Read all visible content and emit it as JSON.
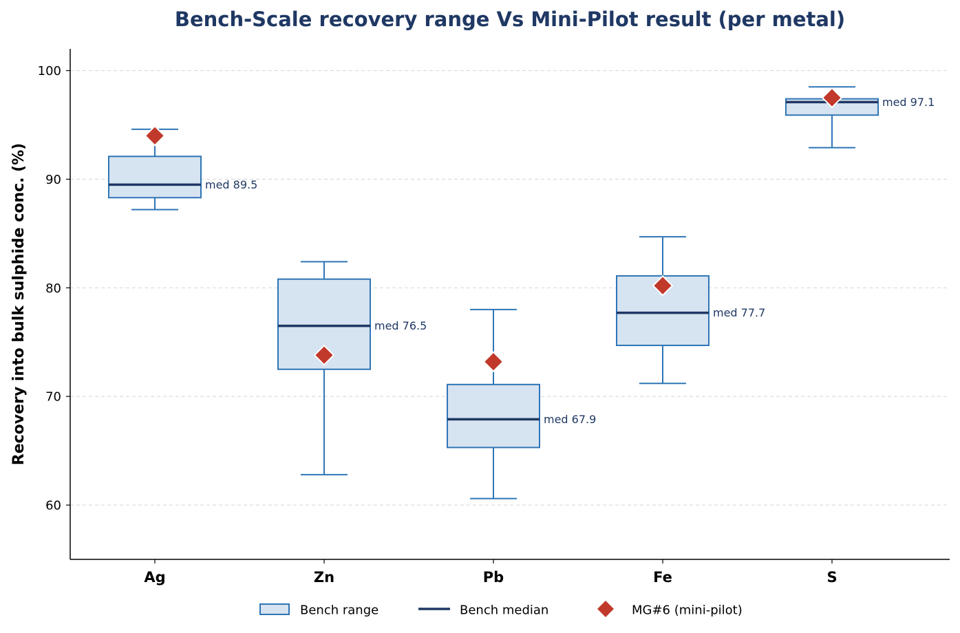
{
  "chart_data": {
    "type": "box",
    "title": "Bench-Scale recovery range Vs Mini-Pilot result (per metal)",
    "xlabel": "",
    "ylabel": "Recovery into bulk sulphide conc. (%)",
    "ylim": [
      55,
      102
    ],
    "yticks": [
      60,
      70,
      80,
      90,
      100
    ],
    "grid": "y-dashed",
    "legend_position": "bottom-center",
    "categories": [
      "Ag",
      "Zn",
      "Pb",
      "Fe",
      "S"
    ],
    "boxes": [
      {
        "category": "Ag",
        "whisker_low": 87.2,
        "q1": 88.3,
        "median": 89.5,
        "q3": 92.1,
        "whisker_high": 94.6,
        "median_label": "med 89.5"
      },
      {
        "category": "Zn",
        "whisker_low": 62.8,
        "q1": 72.5,
        "median": 76.5,
        "q3": 80.8,
        "whisker_high": 82.4,
        "median_label": "med 76.5"
      },
      {
        "category": "Pb",
        "whisker_low": 60.6,
        "q1": 65.3,
        "median": 67.9,
        "q3": 71.1,
        "whisker_high": 78.0,
        "median_label": "med 67.9"
      },
      {
        "category": "Fe",
        "whisker_low": 71.2,
        "q1": 74.7,
        "median": 77.7,
        "q3": 81.1,
        "whisker_high": 84.7,
        "median_label": "med 77.7"
      },
      {
        "category": "S",
        "whisker_low": 92.9,
        "q1": 95.9,
        "median": 97.1,
        "q3": 97.4,
        "whisker_high": 98.5,
        "median_label": "med 97.1"
      }
    ],
    "mini_pilot": [
      {
        "category": "Ag",
        "value": 94.0
      },
      {
        "category": "Zn",
        "value": 73.8
      },
      {
        "category": "Pb",
        "value": 73.2
      },
      {
        "category": "Fe",
        "value": 80.2
      },
      {
        "category": "S",
        "value": 97.5
      }
    ],
    "legend": [
      {
        "key": "box",
        "label": "Bench range"
      },
      {
        "key": "median",
        "label": "Bench median"
      },
      {
        "key": "marker",
        "label": "MG#6 (mini-pilot)"
      }
    ],
    "colors": {
      "box_fill": "#d6e3f0",
      "box_edge": "#2e75b6",
      "median": "#1f3864",
      "marker": "#c0392b",
      "grid": "#d9d9d9",
      "title": "#1f3864"
    }
  }
}
